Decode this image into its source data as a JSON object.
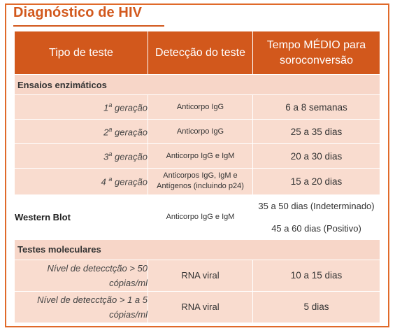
{
  "title": "Diagnóstico de HIV",
  "headers": [
    "Tipo de teste",
    "Detecção do teste",
    "Tempo MÉDIO para soroconversão"
  ],
  "section_enzymatic": "Ensaios enzimáticos",
  "generations": [
    {
      "num": "1",
      "sup": "a",
      "suffix": " geração",
      "detection": "Anticorpo IgG",
      "time": "6 a 8 semanas"
    },
    {
      "num": "2",
      "sup": "a",
      "suffix": " geração",
      "detection": "Anticorpo IgG",
      "time": "25 a 35 dias"
    },
    {
      "num": "3",
      "sup": "a",
      "suffix": " geração",
      "detection": "Anticorpo IgG e IgM",
      "time": "20 a 30 dias"
    },
    {
      "num": "4 ",
      "sup": "a",
      "suffix": " geração",
      "detection": "Anticorpos IgG, IgM e Antígenos (incluindo p24)",
      "time": "15 a 20 dias"
    }
  ],
  "western_blot": {
    "label": "Western Blot",
    "detection": "Anticorpo IgG e IgM",
    "time_indeterminate": "35 a 50 dias (Indeterminado)",
    "time_positive": "45 a 60 dias (Positivo)"
  },
  "section_molecular": "Testes moleculares",
  "molecular": [
    {
      "label": "Nível de detecctção > 50 cópias/ml",
      "detection": "RNA viral",
      "time": "10 a 15 dias"
    },
    {
      "label": "Nível de detecctção > 1 a 5 cópias/ml",
      "detection": "RNA viral",
      "time": "5 dias"
    }
  ],
  "colors": {
    "accent": "#d2581c",
    "cell": "#f9dccf",
    "section": "#f7d6c8"
  }
}
